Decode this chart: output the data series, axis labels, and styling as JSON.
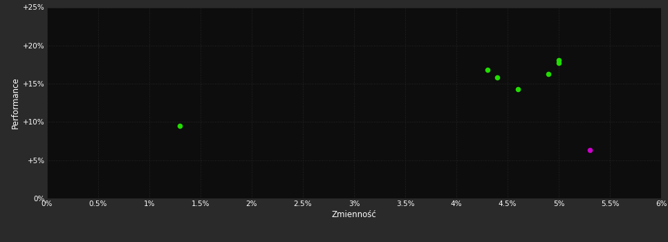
{
  "xlabel": "Zmienność",
  "ylabel": "Performance",
  "background_color": "#2a2a2a",
  "plot_bg_color": "#0d0d0d",
  "grid_color": "#2e2e2e",
  "text_color": "#ffffff",
  "xlim": [
    0.0,
    0.06
  ],
  "ylim": [
    0.0,
    0.25
  ],
  "xtick_vals": [
    0.0,
    0.005,
    0.01,
    0.015,
    0.02,
    0.025,
    0.03,
    0.035,
    0.04,
    0.045,
    0.05,
    0.055,
    0.06
  ],
  "ytick_vals": [
    0.0,
    0.05,
    0.1,
    0.15,
    0.2,
    0.25
  ],
  "green_points": [
    [
      0.013,
      0.095
    ],
    [
      0.043,
      0.168
    ],
    [
      0.044,
      0.158
    ],
    [
      0.046,
      0.143
    ],
    [
      0.049,
      0.163
    ],
    [
      0.05,
      0.181
    ],
    [
      0.05,
      0.177
    ]
  ],
  "magenta_points": [
    [
      0.053,
      0.063
    ]
  ],
  "green_color": "#22dd00",
  "magenta_color": "#cc00cc",
  "marker_size": 30
}
